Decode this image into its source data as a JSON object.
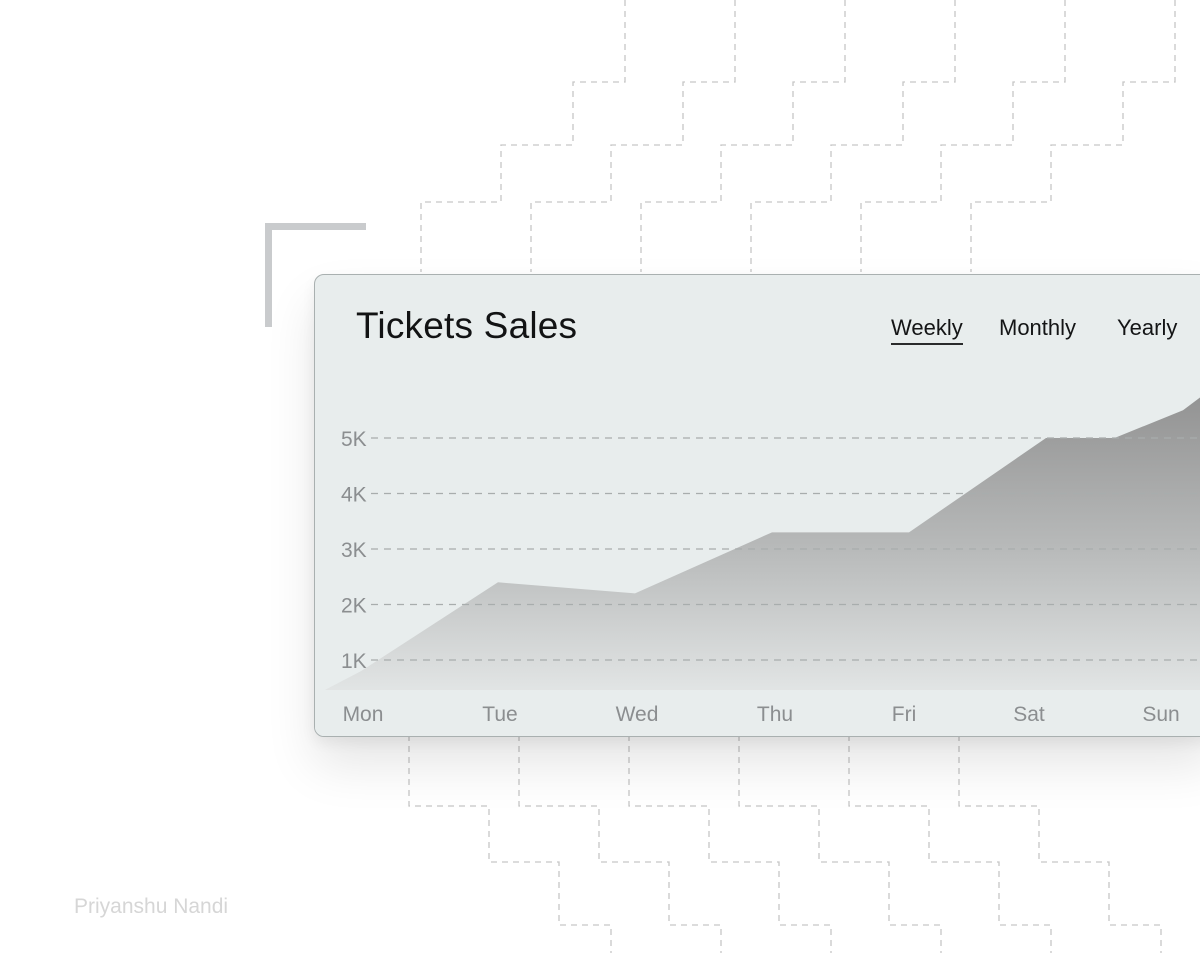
{
  "chart_data": {
    "type": "area",
    "title": "Tickets Sales",
    "range_tabs": [
      "Weekly",
      "Monthly",
      "Yearly"
    ],
    "active_range": "Weekly",
    "categories": [
      "Mon",
      "Tue",
      "Wed",
      "Thu",
      "Fri",
      "Sat",
      "Sun"
    ],
    "y_ticks": [
      "1K",
      "2K",
      "3K",
      "4K",
      "5K"
    ],
    "y_tick_values": [
      1000,
      2000,
      3000,
      4000,
      5000
    ],
    "series": [
      {
        "x": [
          0,
          1,
          2,
          3,
          4,
          5,
          5.5,
          6
        ],
        "values": [
          800,
          2400,
          2200,
          3300,
          3300,
          5000,
          5000,
          5500
        ]
      }
    ],
    "ylim": [
      400,
      5800
    ],
    "grid": true,
    "colors": {
      "fill_top": "#8f8f8f",
      "fill_bottom": "#e3e6e6",
      "grid": "#a8adad"
    }
  },
  "author": "Priyanshu Nandi"
}
